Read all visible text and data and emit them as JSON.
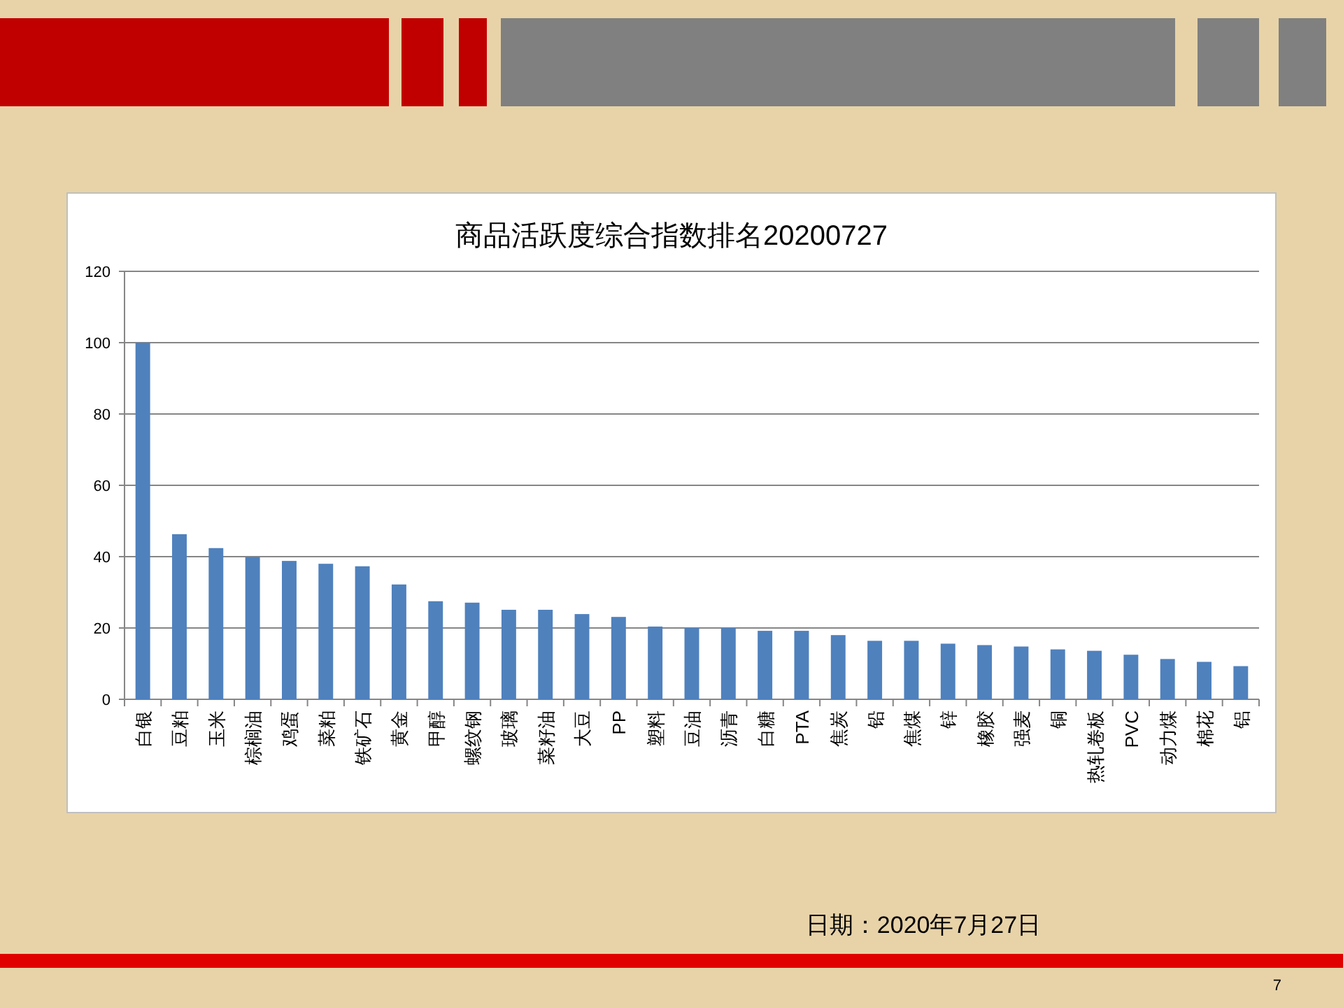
{
  "chart_data": {
    "type": "bar",
    "title": "商品活跃度综合指数排名20200727",
    "categories": [
      "白银",
      "豆粕",
      "玉米",
      "棕榈油",
      "鸡蛋",
      "菜粕",
      "铁矿石",
      "黄金",
      "甲醇",
      "螺纹钢",
      "玻璃",
      "菜籽油",
      "大豆",
      "PP",
      "塑料",
      "豆油",
      "沥青",
      "白糖",
      "PTA",
      "焦炭",
      "铅",
      "焦煤",
      "锌",
      "橡胶",
      "强麦",
      "铜",
      "热轧卷板",
      "PVC",
      "动力煤",
      "棉花",
      "铝"
    ],
    "values": [
      100,
      46.3,
      42.4,
      39.9,
      38.8,
      38.0,
      37.3,
      32.2,
      27.5,
      27.1,
      25.1,
      25.1,
      23.9,
      23.1,
      20.4,
      20,
      20,
      19.2,
      19.2,
      18.0,
      16.4,
      16.4,
      15.6,
      15.2,
      14.8,
      14.0,
      13.6,
      12.5,
      11.3,
      10.5,
      9.3
    ],
    "color": "#4f81bd",
    "ylim": [
      0,
      120
    ],
    "yticks": [
      0,
      20,
      40,
      60,
      80,
      100,
      120
    ],
    "grid": "y",
    "annotations": [
      "日期：2020年7月27日",
      "7"
    ]
  }
}
